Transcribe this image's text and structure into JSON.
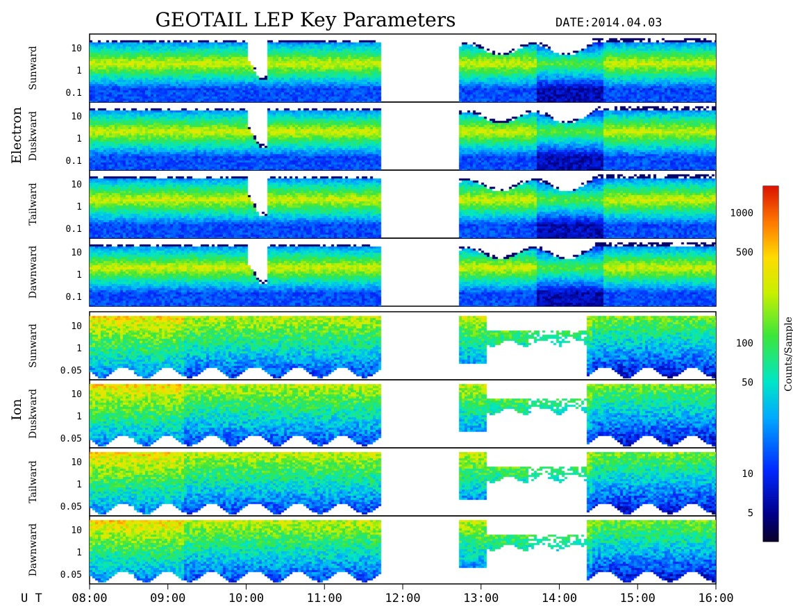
{
  "header": {
    "title": "GEOTAIL LEP Key Parameters",
    "date_label": "DATE:",
    "date_value": "2014.04.03"
  },
  "chart_data": {
    "type": "heatmap",
    "title": "GEOTAIL LEP Key Parameters",
    "date": "2014.04.03",
    "x_axis": {
      "label": "U T",
      "ticks": [
        "08:00",
        "09:00",
        "10:00",
        "11:00",
        "12:00",
        "13:00",
        "14:00",
        "15:00",
        "16:00"
      ],
      "range": [
        "08:00",
        "16:00"
      ],
      "data_gap": [
        "11:42",
        "12:43"
      ]
    },
    "groups": [
      {
        "species": "Electron",
        "panels": [
          {
            "direction": "Sunward",
            "yticks": [
              "10",
              "1",
              "0.1"
            ]
          },
          {
            "direction": "Duskward",
            "yticks": [
              "10",
              "1",
              "0.1"
            ]
          },
          {
            "direction": "Tailward",
            "yticks": [
              "10",
              "1",
              "0.1"
            ]
          },
          {
            "direction": "Dawnward",
            "yticks": [
              "10",
              "1",
              "0.1"
            ]
          }
        ]
      },
      {
        "species": "Ion",
        "panels": [
          {
            "direction": "Sunward",
            "yticks": [
              "10",
              "1",
              "0.05"
            ]
          },
          {
            "direction": "Duskward",
            "yticks": [
              "10",
              "1",
              "0.05"
            ]
          },
          {
            "direction": "Tailward",
            "yticks": [
              "10",
              "1",
              "0.05"
            ]
          },
          {
            "direction": "Dawnward",
            "yticks": [
              "10",
              "1",
              "0.05"
            ]
          }
        ]
      }
    ],
    "colorbar": {
      "label": "Counts/Sample",
      "scale": "log",
      "range": [
        3,
        1600
      ],
      "ticks": [
        "1000",
        "500",
        "100",
        "50",
        "10",
        "5"
      ],
      "tick_values": [
        1000,
        500,
        100,
        50,
        10,
        5
      ],
      "colormap": "rainbow (dark blue → red)"
    }
  }
}
